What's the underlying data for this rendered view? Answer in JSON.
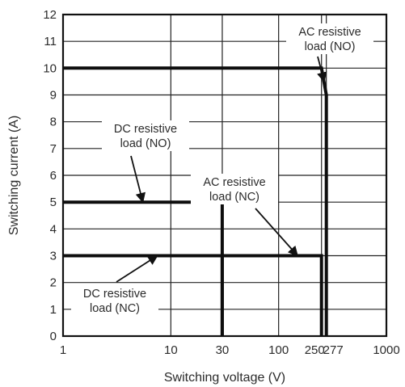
{
  "chart_data": {
    "type": "line",
    "title": "",
    "xlabel": "Switching voltage (V)",
    "ylabel": "Switching current (A)",
    "x_scale": "log",
    "xlim": [
      1,
      1000
    ],
    "ylim": [
      0,
      12
    ],
    "x_ticks": [
      1,
      10,
      30,
      100,
      250,
      277,
      1000
    ],
    "x_tick_labels": [
      "1",
      "10",
      "30",
      "100",
      "250",
      "277",
      "1000"
    ],
    "y_ticks": [
      0,
      1,
      2,
      3,
      4,
      5,
      6,
      7,
      8,
      9,
      10,
      11,
      12
    ],
    "y_tick_labels": [
      "0",
      "1",
      "2",
      "3",
      "4",
      "5",
      "6",
      "7",
      "8",
      "9",
      "10",
      "11",
      "12"
    ],
    "grid": true,
    "legend": "none",
    "series": [
      {
        "name": "AC resistive load (NO)",
        "points": [
          [
            1,
            10
          ],
          [
            250,
            10
          ],
          [
            277,
            9
          ],
          [
            277,
            0
          ]
        ]
      },
      {
        "name": "DC resistive load (NO)",
        "points": [
          [
            1,
            5
          ],
          [
            30,
            5
          ],
          [
            30,
            0
          ]
        ]
      },
      {
        "name": "AC resistive load (NC)",
        "points": [
          [
            1,
            3
          ],
          [
            250,
            3
          ],
          [
            250,
            0
          ]
        ]
      },
      {
        "name": "DC resistive load (NC)",
        "points": [
          [
            1,
            3
          ],
          [
            30,
            3
          ],
          [
            30,
            0
          ]
        ]
      }
    ],
    "annotations": [
      {
        "lines": [
          "AC resistive",
          "load (NO)"
        ],
        "target": [
          265,
          9.5
        ]
      },
      {
        "lines": [
          "DC resistive",
          "load (NO)"
        ],
        "target": [
          5.5,
          5
        ]
      },
      {
        "lines": [
          "AC resistive",
          "load (NC)"
        ],
        "target": [
          150,
          3
        ]
      },
      {
        "lines": [
          "DC resistive",
          "load (NC)"
        ],
        "target": [
          7.5,
          3
        ]
      }
    ]
  }
}
